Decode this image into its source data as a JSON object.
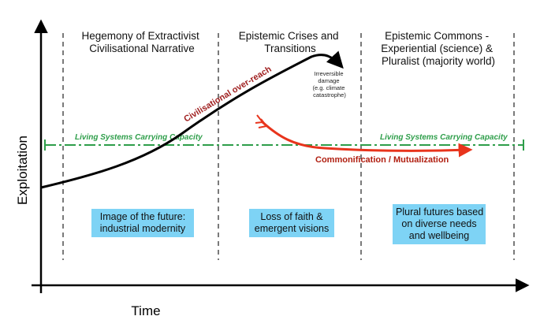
{
  "axes": {
    "y_label": "Exploitation",
    "x_label": "Time"
  },
  "phases": [
    {
      "title_lines": [
        "Hegemony of Extractivist",
        "Civilisational Narrative"
      ],
      "future_lines": [
        "Image of the future:",
        "industrial modernity"
      ]
    },
    {
      "title_lines": [
        "Epistemic Crises and",
        "Transitions"
      ],
      "future_lines": [
        "Loss of faith &",
        "emergent visions"
      ]
    },
    {
      "title_lines": [
        "Epistemic Commons -",
        "Experiential (science) &",
        "Pluralist (majority world)"
      ],
      "future_lines": [
        "Plural futures based",
        "on diverse needs",
        "and wellbeing"
      ]
    }
  ],
  "carrying_capacity": {
    "label": "Living Systems Carrying Capacity",
    "color": "#2e9e4a"
  },
  "curves": {
    "overreach": {
      "label": "Civilisational over-reach",
      "color": "#000000",
      "label_color": "#a02020"
    },
    "irreversible_note_lines": [
      "Irreversible",
      "damage",
      "(e.g. climate",
      "catastrophe)"
    ],
    "commonification": {
      "label": "Commonification / Mutualization",
      "color": "#e8341c",
      "label_color": "#b01e10"
    }
  },
  "colors": {
    "box_fill": "#7ed3f5",
    "axis": "#000000",
    "divider": "#222222"
  }
}
